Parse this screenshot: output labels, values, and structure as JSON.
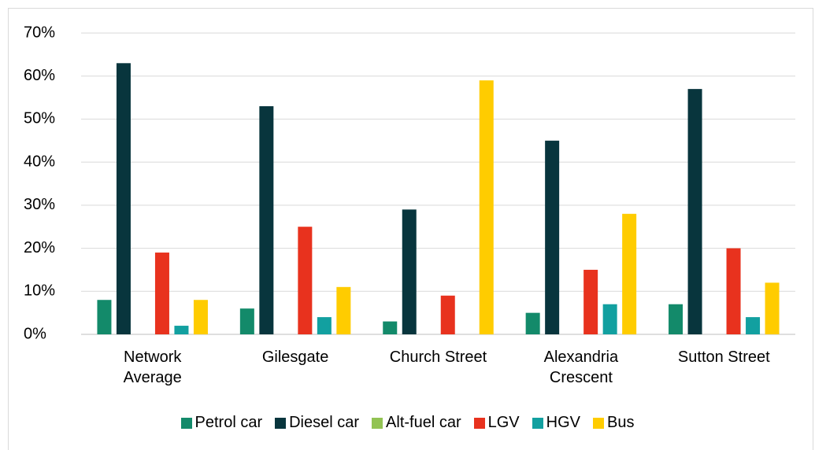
{
  "chart_data": {
    "type": "bar",
    "categories": [
      "Network Average",
      "Gilesgate",
      "Church Street",
      "Alexandria Crescent",
      "Sutton Street"
    ],
    "series": [
      {
        "name": "Petrol car",
        "color": "#138a6a",
        "values": [
          8,
          6,
          3,
          5,
          7
        ]
      },
      {
        "name": "Diesel car",
        "color": "#08353d",
        "values": [
          63,
          53,
          29,
          45,
          57
        ]
      },
      {
        "name": "Alt-fuel car",
        "color": "#92c353",
        "values": [
          0,
          0,
          0,
          0,
          0
        ]
      },
      {
        "name": "LGV",
        "color": "#e8321e",
        "values": [
          19,
          25,
          9,
          15,
          20
        ]
      },
      {
        "name": "HGV",
        "color": "#12a0a0",
        "values": [
          2,
          4,
          0,
          7,
          4
        ]
      },
      {
        "name": "Bus",
        "color": "#ffcc00",
        "values": [
          8,
          11,
          59,
          28,
          12
        ]
      }
    ],
    "ylim": [
      0,
      70
    ],
    "yticks": [
      {
        "value": 0,
        "label": "0%"
      },
      {
        "value": 10,
        "label": "10%"
      },
      {
        "value": 20,
        "label": "20%"
      },
      {
        "value": 30,
        "label": "30%"
      },
      {
        "value": 40,
        "label": "40%"
      },
      {
        "value": 50,
        "label": "50%"
      },
      {
        "value": 60,
        "label": "60%"
      },
      {
        "value": 70,
        "label": "70%"
      }
    ],
    "grid": true,
    "legend": "bottom"
  }
}
